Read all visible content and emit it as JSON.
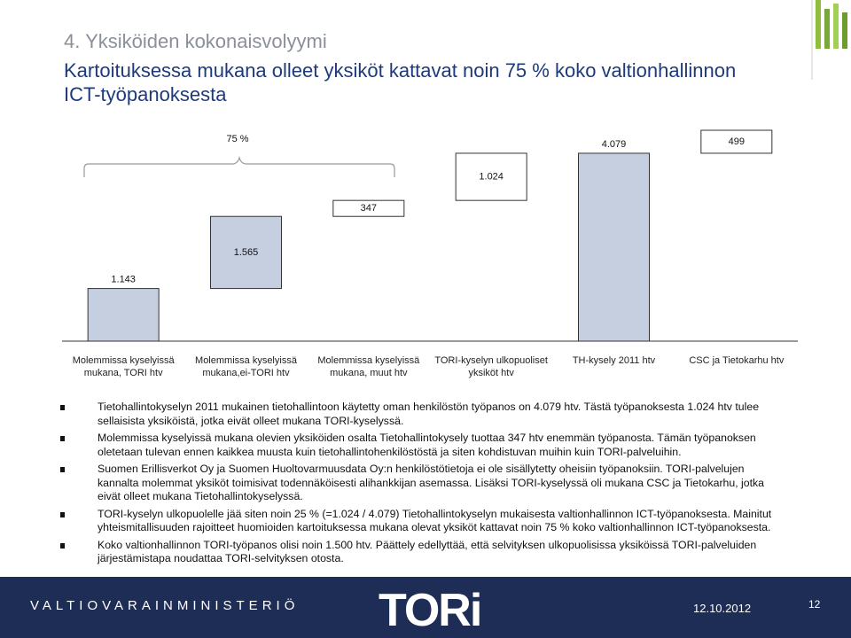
{
  "header": {
    "section": "4. Yksiköiden kokonaisvolyymi",
    "title": "Kartoituksessa mukana olleet yksiköt kattavat noin 75 % koko valtionhallinnon ICT-työpanoksesta"
  },
  "chart_data": {
    "type": "waterfall",
    "categories": [
      "Molemmissa kyselyissä mukana, TORI htv",
      "Molemmissa kyselyissä mukana,ei-TORI htv",
      "Molemmissa kyselyissä mukana, muut htv",
      "TORI-kyselyn ulkopuoliset yksiköt htv",
      "TH-kysely 2011 htv",
      "CSC ja Tietokarhu htv"
    ],
    "values": [
      1143,
      1565,
      347,
      1024,
      4079,
      499
    ],
    "value_labels": [
      "1.143",
      "1.565",
      "347",
      "1.024",
      "4.079",
      "499"
    ],
    "measures": [
      "relative",
      "relative",
      "relative",
      "relative",
      "total",
      "relative"
    ],
    "colors": [
      "#c6cfdf",
      "#c6cfdf",
      "#ffffff",
      "#ffffff",
      "#c6cfdf",
      "#ffffff"
    ],
    "annotation": "75 %"
  },
  "bullets": [
    "Tietohallintokyselyn 2011 mukainen tietohallintoon käytetty oman henkilöstön työpanos on 4.079 htv. Tästä työpanoksesta 1.024 htv tulee sellaisista yksiköistä, jotka eivät olleet mukana TORI-kyselyssä.",
    "Molemmissa kyselyissä mukana olevien yksiköiden osalta Tietohallintokysely tuottaa 347 htv enemmän työpanosta. Tämän työpanoksen oletetaan tulevan ennen kaikkea muusta kuin tietohallintohenkilöstöstä ja siten kohdistuvan muihin kuin TORI-palveluihin.",
    "Suomen Erillisverkot Oy ja Suomen Huoltovarmuusdata Oy:n henkilöstötietoja ei ole sisällytetty oheisiin työpanoksiin. TORI-palvelujen kannalta molemmat yksiköt toimisivat todennäköisesti alihankkijan asemassa. Lisäksi TORI-kyselyssä oli mukana CSC ja Tietokarhu, jotka eivät olleet mukana Tietohallintokyselyssä.",
    "TORI-kyselyn ulkopuolelle jää siten noin 25 % (=1.024 / 4.079) Tietohallintokyselyn mukaisesta valtionhallinnon ICT-työpanoksesta. Mainitut yhteismitallisuuden rajoitteet huomioiden kartoituksessa mukana olevat yksiköt kattavat noin 75 % koko valtionhallinnon ICT-työpanoksesta.",
    "Koko valtionhallinnon TORI-työpanos olisi noin 1.500 htv.  Päättely edellyttää, että selvityksen ulkopuolisissa yksiköissä TORI-palveluiden järjestämistapa noudattaa TORI-selvityksen otosta."
  ],
  "footer": {
    "ministry": "VALTIOVARAINMINISTERIÖ",
    "logo": "TORi",
    "date": "12.10.2012",
    "page": "12"
  }
}
